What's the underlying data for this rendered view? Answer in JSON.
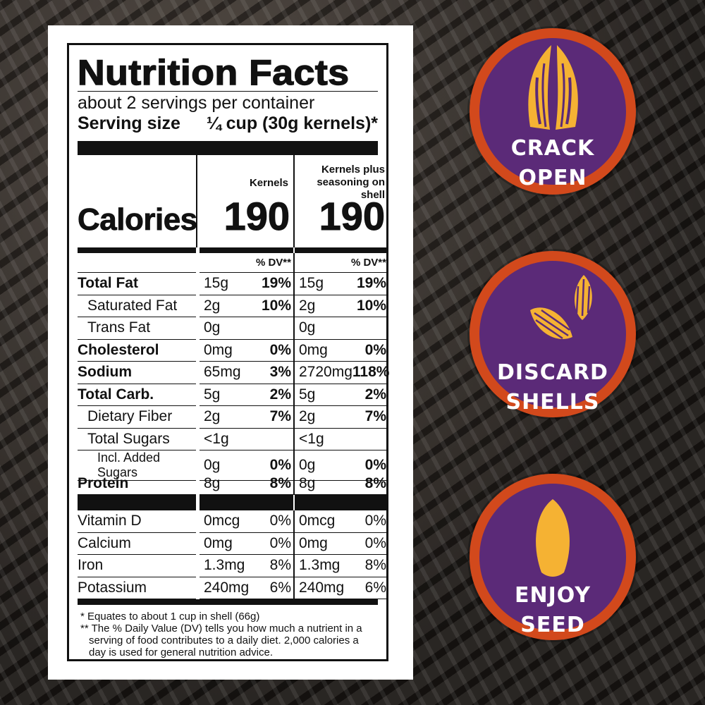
{
  "label": {
    "title": "Nutrition Facts",
    "servings": "about 2 servings per container",
    "serving_size_label": "Serving size",
    "serving_size_value": "¼ cup (30g kernels)*",
    "col1_header": "Kernels",
    "col2_header_line1": "Kernels plus",
    "col2_header_line2": "seasoning on shell",
    "calories_label": "Calories",
    "calories_col1": "190",
    "calories_col2": "190",
    "dv_header": "% DV**",
    "nutrients": [
      {
        "name": "Total Fat",
        "a": "15g",
        "adv": "19%",
        "b": "15g",
        "bdv": "19%"
      },
      {
        "name": "Saturated Fat",
        "a": "2g",
        "adv": "10%",
        "b": "2g",
        "bdv": "10%"
      },
      {
        "name": "Trans Fat",
        "a": "0g",
        "adv": "",
        "b": "0g",
        "bdv": ""
      },
      {
        "name": "Cholesterol",
        "a": "0mg",
        "adv": "0%",
        "b": "0mg",
        "bdv": "0%"
      },
      {
        "name": "Sodium",
        "a": "65mg",
        "adv": "3%",
        "b": "2720mg",
        "bdv": "118%"
      },
      {
        "name": "Total Carb.",
        "a": "5g",
        "adv": "2%",
        "b": "5g",
        "bdv": "2%"
      },
      {
        "name": "Dietary Fiber",
        "a": "2g",
        "adv": "7%",
        "b": "2g",
        "bdv": "7%"
      },
      {
        "name": "Total Sugars",
        "a": "<1g",
        "adv": "",
        "b": "<1g",
        "bdv": ""
      },
      {
        "name": "Incl. Added Sugars",
        "a": "0g",
        "adv": "0%",
        "b": "0g",
        "bdv": "0%"
      },
      {
        "name": "Protein",
        "a": "8g",
        "adv": "8%",
        "b": "8g",
        "bdv": "8%"
      }
    ],
    "vitamins": [
      {
        "name": "Vitamin D",
        "a": "0mcg",
        "adv": "0%",
        "b": "0mcg",
        "bdv": "0%"
      },
      {
        "name": "Calcium",
        "a": "0mg",
        "adv": "0%",
        "b": "0mg",
        "bdv": "0%"
      },
      {
        "name": "Iron",
        "a": "1.3mg",
        "adv": "8%",
        "b": "1.3mg",
        "bdv": "8%"
      },
      {
        "name": "Potassium",
        "a": "240mg",
        "adv": "6%",
        "b": "240mg",
        "bdv": "6%"
      }
    ],
    "note1_marker": "*",
    "note1": "Equates to about 1 cup in shell (66g)",
    "note2_marker": "**",
    "note2": "The % Daily Value (DV) tells you how much a nutrient in a serving of food contributes to a daily diet. 2,000 calories a day is used for general nutrition advice."
  },
  "steps": [
    {
      "line1": "CRACK",
      "line2": "OPEN",
      "icon": "cracked-seed-icon"
    },
    {
      "line1": "DISCARD",
      "line2": "SHELLS",
      "icon": "shells-icon"
    },
    {
      "line1": "ENJOY",
      "line2": "SEED",
      "icon": "kernel-icon"
    }
  ],
  "colors": {
    "badge_fill": "#5b2a78",
    "badge_ring": "#d2491c",
    "icon_gold": "#f5b233"
  }
}
